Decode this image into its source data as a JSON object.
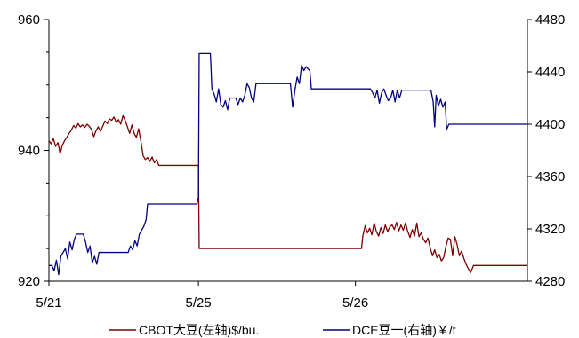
{
  "chart_data": {
    "type": "line",
    "title": "",
    "x_ticks": [
      "5/21",
      "5/25",
      "5/26"
    ],
    "y_left": {
      "ticks": [
        920,
        940,
        960
      ],
      "lim": [
        920,
        960
      ]
    },
    "y_right": {
      "ticks": [
        4280,
        4320,
        4360,
        4400,
        4440,
        4480
      ],
      "lim": [
        4280,
        4480
      ]
    },
    "grid": false,
    "legend_position": "bottom",
    "series": [
      {
        "name": "CBOT大豆(左轴)$/bu.",
        "axis": "left",
        "color": "#7b0000",
        "points": [
          [
            0,
            941.5
          ],
          [
            0.3,
            941.0
          ],
          [
            0.6,
            941.8
          ],
          [
            0.9,
            940.6
          ],
          [
            1.2,
            941.2
          ],
          [
            1.5,
            939.5
          ],
          [
            1.8,
            940.8
          ],
          [
            2.1,
            941.5
          ],
          [
            2.4,
            942.0
          ],
          [
            2.7,
            942.6
          ],
          [
            3.0,
            943.1
          ],
          [
            3.3,
            943.8
          ],
          [
            3.6,
            943.4
          ],
          [
            3.9,
            944.1
          ],
          [
            4.2,
            943.6
          ],
          [
            4.5,
            943.9
          ],
          [
            4.8,
            943.5
          ],
          [
            5.1,
            944.0
          ],
          [
            5.4,
            943.7
          ],
          [
            5.7,
            943.2
          ],
          [
            6.0,
            942.1
          ],
          [
            6.3,
            943.0
          ],
          [
            6.6,
            943.6
          ],
          [
            6.9,
            942.9
          ],
          [
            7.2,
            943.7
          ],
          [
            7.5,
            944.5
          ],
          [
            7.8,
            944.1
          ],
          [
            8.1,
            944.8
          ],
          [
            8.4,
            944.6
          ],
          [
            8.7,
            945.1
          ],
          [
            9.0,
            944.3
          ],
          [
            9.3,
            944.7
          ],
          [
            9.6,
            944.0
          ],
          [
            9.9,
            945.3
          ],
          [
            10.2,
            944.6
          ],
          [
            10.5,
            943.6
          ],
          [
            10.8,
            942.6
          ],
          [
            11.1,
            943.9
          ],
          [
            11.4,
            942.6
          ],
          [
            11.7,
            942.0
          ],
          [
            12.0,
            943.3
          ],
          [
            12.3,
            941.4
          ],
          [
            12.6,
            939.2
          ],
          [
            12.9,
            938.6
          ],
          [
            13.2,
            938.9
          ],
          [
            13.5,
            938.3
          ],
          [
            13.8,
            939.0
          ],
          [
            14.1,
            938.1
          ],
          [
            14.4,
            938.6
          ],
          [
            14.7,
            937.7
          ],
          [
            15.0,
            937.7
          ],
          [
            16.0,
            937.7
          ],
          [
            17.0,
            937.7
          ],
          [
            18.0,
            937.7
          ],
          [
            19.0,
            937.7
          ],
          [
            20.0,
            937.7
          ],
          [
            20.1,
            925.0
          ],
          [
            25.0,
            925.0
          ],
          [
            30.0,
            925.0
          ],
          [
            35.0,
            925.0
          ],
          [
            40.0,
            925.0
          ],
          [
            41.8,
            925.0
          ],
          [
            42.0,
            927.0
          ],
          [
            42.3,
            928.5
          ],
          [
            42.6,
            927.4
          ],
          [
            42.9,
            928.1
          ],
          [
            43.2,
            927.1
          ],
          [
            43.5,
            928.9
          ],
          [
            43.8,
            927.6
          ],
          [
            44.1,
            926.9
          ],
          [
            44.4,
            928.2
          ],
          [
            44.7,
            927.3
          ],
          [
            45.0,
            928.6
          ],
          [
            45.3,
            927.6
          ],
          [
            45.6,
            928.3
          ],
          [
            45.9,
            928.6
          ],
          [
            46.2,
            927.9
          ],
          [
            46.5,
            929.0
          ],
          [
            46.8,
            927.7
          ],
          [
            47.1,
            928.6
          ],
          [
            47.4,
            927.8
          ],
          [
            47.7,
            928.9
          ],
          [
            48.0,
            927.6
          ],
          [
            48.3,
            926.7
          ],
          [
            48.6,
            927.9
          ],
          [
            48.9,
            926.9
          ],
          [
            49.2,
            928.9
          ],
          [
            49.5,
            926.8
          ],
          [
            49.8,
            927.4
          ],
          [
            50.1,
            926.4
          ],
          [
            50.4,
            925.9
          ],
          [
            50.7,
            926.6
          ],
          [
            51.0,
            925.1
          ],
          [
            51.3,
            923.9
          ],
          [
            51.6,
            924.8
          ],
          [
            51.9,
            923.6
          ],
          [
            52.2,
            924.1
          ],
          [
            52.5,
            923.1
          ],
          [
            52.8,
            923.6
          ],
          [
            53.1,
            925.3
          ],
          [
            53.4,
            926.6
          ],
          [
            53.7,
            926.4
          ],
          [
            54.0,
            923.9
          ],
          [
            54.3,
            926.8
          ],
          [
            54.6,
            925.6
          ],
          [
            54.9,
            923.9
          ],
          [
            55.2,
            924.6
          ],
          [
            55.5,
            923.5
          ],
          [
            55.8,
            922.6
          ],
          [
            56.1,
            921.9
          ],
          [
            56.4,
            921.3
          ],
          [
            56.8,
            922.4
          ],
          [
            60.0,
            922.4
          ],
          [
            64.0,
            922.4
          ]
        ]
      },
      {
        "name": "DCE豆一(右轴)￥/t",
        "axis": "right",
        "color": "#000080",
        "points": [
          [
            0,
            4292
          ],
          [
            0.4,
            4292
          ],
          [
            0.7,
            4288
          ],
          [
            1.0,
            4296
          ],
          [
            1.3,
            4285
          ],
          [
            1.6,
            4299
          ],
          [
            1.9,
            4302
          ],
          [
            2.2,
            4305
          ],
          [
            2.5,
            4297
          ],
          [
            2.8,
            4310
          ],
          [
            3.1,
            4304
          ],
          [
            3.4,
            4312
          ],
          [
            3.7,
            4316
          ],
          [
            4.0,
            4316
          ],
          [
            4.3,
            4316
          ],
          [
            4.6,
            4316
          ],
          [
            4.9,
            4310
          ],
          [
            5.2,
            4302
          ],
          [
            5.5,
            4307
          ],
          [
            5.8,
            4294
          ],
          [
            6.1,
            4299
          ],
          [
            6.4,
            4293
          ],
          [
            6.7,
            4302
          ],
          [
            7.0,
            4302
          ],
          [
            8.0,
            4302
          ],
          [
            9.0,
            4302
          ],
          [
            10.0,
            4302
          ],
          [
            10.6,
            4302
          ],
          [
            10.9,
            4307
          ],
          [
            11.2,
            4304
          ],
          [
            11.5,
            4311
          ],
          [
            11.8,
            4307
          ],
          [
            12.1,
            4316
          ],
          [
            12.4,
            4319
          ],
          [
            12.7,
            4322
          ],
          [
            13.0,
            4327
          ],
          [
            13.2,
            4339
          ],
          [
            14.0,
            4339
          ],
          [
            15.0,
            4339
          ],
          [
            16.0,
            4339
          ],
          [
            17.0,
            4339
          ],
          [
            18.0,
            4339
          ],
          [
            19.0,
            4339
          ],
          [
            19.8,
            4339
          ],
          [
            20.0,
            4344
          ],
          [
            20.1,
            4454
          ],
          [
            21.0,
            4454
          ],
          [
            21.6,
            4454
          ],
          [
            21.8,
            4427
          ],
          [
            22.1,
            4423
          ],
          [
            22.4,
            4417
          ],
          [
            22.7,
            4427
          ],
          [
            23.0,
            4415
          ],
          [
            23.3,
            4413
          ],
          [
            23.6,
            4418
          ],
          [
            23.9,
            4411
          ],
          [
            24.2,
            4420
          ],
          [
            24.5,
            4420
          ],
          [
            25.0,
            4420
          ],
          [
            25.3,
            4415
          ],
          [
            25.6,
            4420
          ],
          [
            25.9,
            4417
          ],
          [
            26.2,
            4422
          ],
          [
            26.5,
            4431
          ],
          [
            26.8,
            4428
          ],
          [
            27.1,
            4420
          ],
          [
            27.4,
            4417
          ],
          [
            27.7,
            4431
          ],
          [
            29.0,
            4431
          ],
          [
            30.0,
            4431
          ],
          [
            31.0,
            4431
          ],
          [
            32.0,
            4431
          ],
          [
            32.3,
            4431
          ],
          [
            32.6,
            4413
          ],
          [
            32.9,
            4426
          ],
          [
            33.2,
            4436
          ],
          [
            33.5,
            4431
          ],
          [
            33.8,
            4445
          ],
          [
            34.1,
            4441
          ],
          [
            34.4,
            4444
          ],
          [
            34.7,
            4442
          ],
          [
            34.9,
            4441
          ],
          [
            35.1,
            4427
          ],
          [
            36.0,
            4427
          ],
          [
            38.0,
            4427
          ],
          [
            40.0,
            4427
          ],
          [
            42.0,
            4427
          ],
          [
            43.0,
            4427
          ],
          [
            43.3,
            4424
          ],
          [
            43.6,
            4420
          ],
          [
            43.9,
            4426
          ],
          [
            44.2,
            4416
          ],
          [
            44.5,
            4424
          ],
          [
            44.8,
            4427
          ],
          [
            45.1,
            4422
          ],
          [
            45.4,
            4418
          ],
          [
            45.7,
            4420
          ],
          [
            46.0,
            4426
          ],
          [
            46.3,
            4417
          ],
          [
            46.6,
            4426
          ],
          [
            46.9,
            4420
          ],
          [
            47.2,
            4426
          ],
          [
            48.0,
            4426
          ],
          [
            50.0,
            4426
          ],
          [
            51.1,
            4426
          ],
          [
            51.4,
            4417
          ],
          [
            51.6,
            4398
          ],
          [
            51.8,
            4422
          ],
          [
            52.1,
            4414
          ],
          [
            52.4,
            4419
          ],
          [
            52.7,
            4413
          ],
          [
            53.0,
            4417
          ],
          [
            53.2,
            4396
          ],
          [
            53.5,
            4400
          ],
          [
            55.0,
            4400
          ],
          [
            58.0,
            4400
          ],
          [
            61.0,
            4400
          ],
          [
            64.0,
            4400
          ]
        ]
      }
    ]
  },
  "legend": {
    "items": [
      {
        "label": "CBOT大豆(左轴)$/bu.",
        "color": "#7b0000"
      },
      {
        "label": "DCE豆一(右轴)￥/t",
        "color": "#000080"
      }
    ]
  }
}
